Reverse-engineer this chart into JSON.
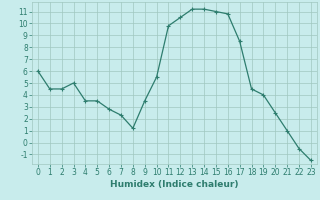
{
  "x": [
    0,
    1,
    2,
    3,
    4,
    5,
    6,
    7,
    8,
    9,
    10,
    11,
    12,
    13,
    14,
    15,
    16,
    17,
    18,
    19,
    20,
    21,
    22,
    23
  ],
  "y": [
    6.0,
    4.5,
    4.5,
    5.0,
    3.5,
    3.5,
    2.8,
    2.3,
    1.2,
    3.5,
    5.5,
    9.8,
    10.5,
    11.2,
    11.2,
    11.0,
    10.8,
    8.5,
    4.5,
    4.0,
    2.5,
    1.0,
    -0.5,
    -1.5
  ],
  "line_color": "#2e7d6e",
  "marker": "+",
  "marker_size": 3,
  "marker_lw": 0.8,
  "line_width": 0.9,
  "bg_color": "#c8ecec",
  "grid_color": "#a0c8c0",
  "xlabel": "Humidex (Indice chaleur)",
  "xlim": [
    -0.5,
    23.5
  ],
  "ylim": [
    -1.8,
    11.8
  ],
  "yticks": [
    -1,
    0,
    1,
    2,
    3,
    4,
    5,
    6,
    7,
    8,
    9,
    10,
    11
  ],
  "xticks": [
    0,
    1,
    2,
    3,
    4,
    5,
    6,
    7,
    8,
    9,
    10,
    11,
    12,
    13,
    14,
    15,
    16,
    17,
    18,
    19,
    20,
    21,
    22,
    23
  ],
  "tick_color": "#2e7d6e",
  "tick_label_fontsize": 5.5,
  "xlabel_fontsize": 6.5
}
